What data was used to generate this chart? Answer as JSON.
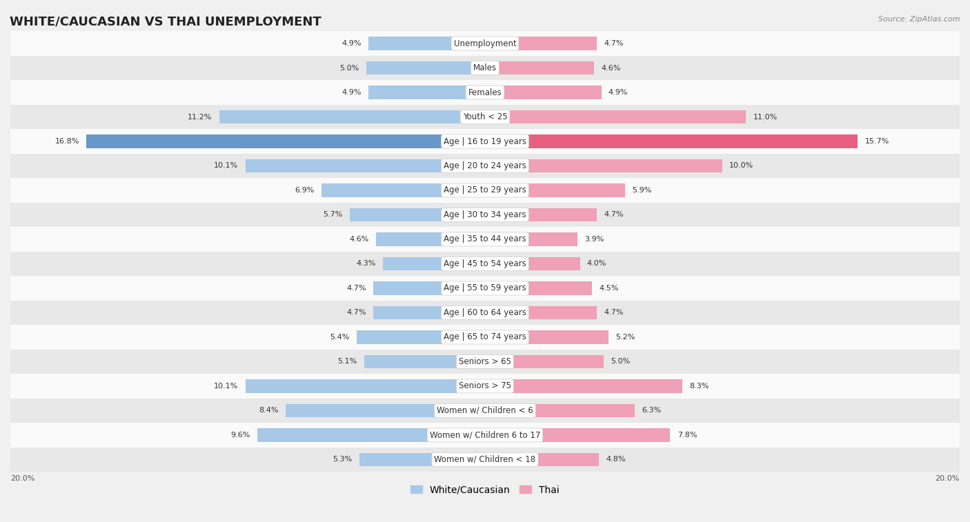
{
  "title": "WHITE/CAUCASIAN VS THAI UNEMPLOYMENT",
  "source": "Source: ZipAtlas.com",
  "categories": [
    "Unemployment",
    "Males",
    "Females",
    "Youth < 25",
    "Age | 16 to 19 years",
    "Age | 20 to 24 years",
    "Age | 25 to 29 years",
    "Age | 30 to 34 years",
    "Age | 35 to 44 years",
    "Age | 45 to 54 years",
    "Age | 55 to 59 years",
    "Age | 60 to 64 years",
    "Age | 65 to 74 years",
    "Seniors > 65",
    "Seniors > 75",
    "Women w/ Children < 6",
    "Women w/ Children 6 to 17",
    "Women w/ Children < 18"
  ],
  "white_values": [
    4.9,
    5.0,
    4.9,
    11.2,
    16.8,
    10.1,
    6.9,
    5.7,
    4.6,
    4.3,
    4.7,
    4.7,
    5.4,
    5.1,
    10.1,
    8.4,
    9.6,
    5.3
  ],
  "thai_values": [
    4.7,
    4.6,
    4.9,
    11.0,
    15.7,
    10.0,
    5.9,
    4.7,
    3.9,
    4.0,
    4.5,
    4.7,
    5.2,
    5.0,
    8.3,
    6.3,
    7.8,
    4.8
  ],
  "white_color": "#a8c8e8",
  "thai_color": "#f0a0b8",
  "white_highlight_color": "#6898c8",
  "thai_highlight_color": "#e86080",
  "highlight_rows": [
    4
  ],
  "bar_height": 0.55,
  "xlim": 20.0,
  "background_color": "#f0f0f0",
  "row_bg_light": "#fafafa",
  "row_bg_dark": "#e8e8e8",
  "title_fontsize": 13,
  "label_fontsize": 8.5,
  "value_fontsize": 8.0,
  "legend_fontsize": 10
}
